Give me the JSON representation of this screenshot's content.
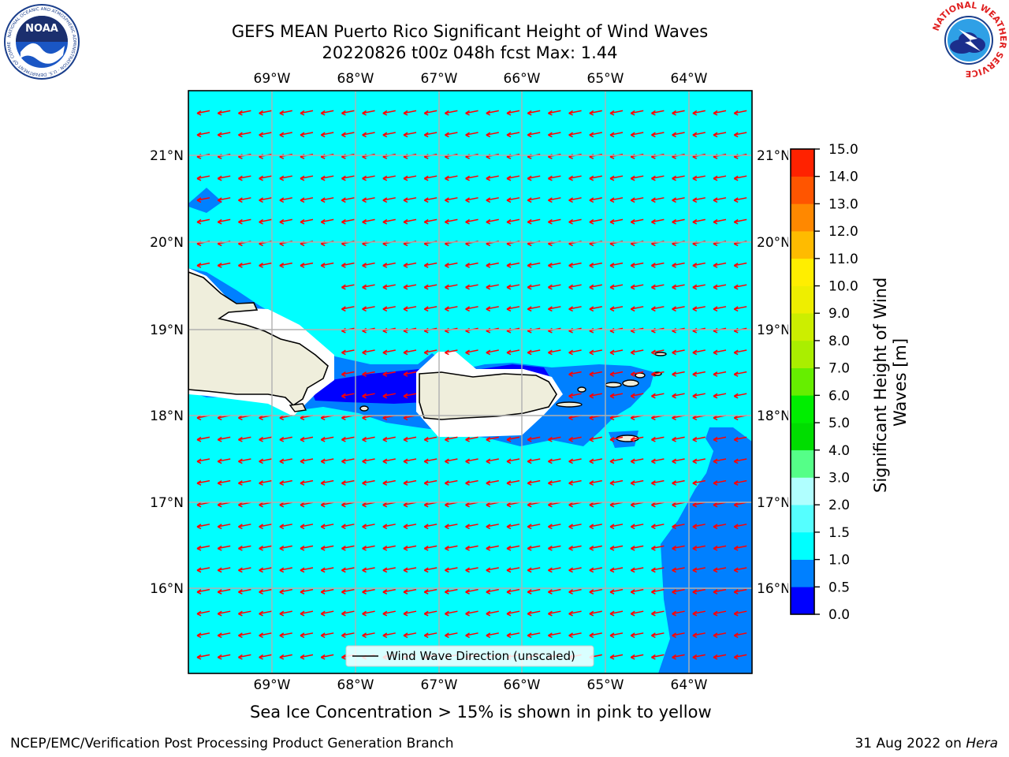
{
  "header": {
    "title_line1": "GEFS MEAN Puerto Rico Significant Height of Wind Waves",
    "title_line2": "20220826 t00z 048h fcst   Max: 1.44"
  },
  "logos": {
    "left_name": "NOAA",
    "left_ring_text": "NATIONAL OCEANIC AND ATMOSPHERIC ADMINISTRATION · U.S. DEPARTMENT OF COMMERCE",
    "right_ring_text": "NATIONAL WEATHER SERVICE"
  },
  "map": {
    "lon_labels": [
      "69°W",
      "68°W",
      "67°W",
      "66°W",
      "65°W",
      "64°W"
    ],
    "lat_labels": [
      "21°N",
      "20°N",
      "19°N",
      "18°N",
      "17°N",
      "16°N"
    ],
    "legend_text": "Wind Wave Direction (unscaled)",
    "arrow_color": "#ff0000",
    "colors": {
      "bin_0_0.5": "#0000ff",
      "bin_0.5_1.0": "#0080ff",
      "bin_1.0_1.5": "#00ffff",
      "land": "#efeedc",
      "undefined": "#ffffff"
    }
  },
  "colorbar": {
    "label": "Significant Height of Wind Waves [m]",
    "ticks": [
      "0.0",
      "0.5",
      "1.0",
      "1.5",
      "2.0",
      "3.0",
      "4.0",
      "5.0",
      "6.0",
      "7.0",
      "8.0",
      "9.0",
      "10.0",
      "11.0",
      "12.0",
      "13.0",
      "14.0",
      "15.0"
    ],
    "colors": [
      "#0000ff",
      "#0080ff",
      "#00ffff",
      "#55ffff",
      "#b0ffff",
      "#55ff88",
      "#00dd00",
      "#00ee00",
      "#66ee00",
      "#aaee00",
      "#ccee00",
      "#eeee00",
      "#ffee00",
      "#ffbb00",
      "#ff8800",
      "#ff5500",
      "#ff2200"
    ]
  },
  "caption": "Sea Ice Concentration > 15% is shown in pink to yellow",
  "footer": {
    "left": "NCEP/EMC/Verification Post Processing Product Generation Branch",
    "right_date": "31 Aug 2022 on ",
    "right_host": "Hera"
  }
}
